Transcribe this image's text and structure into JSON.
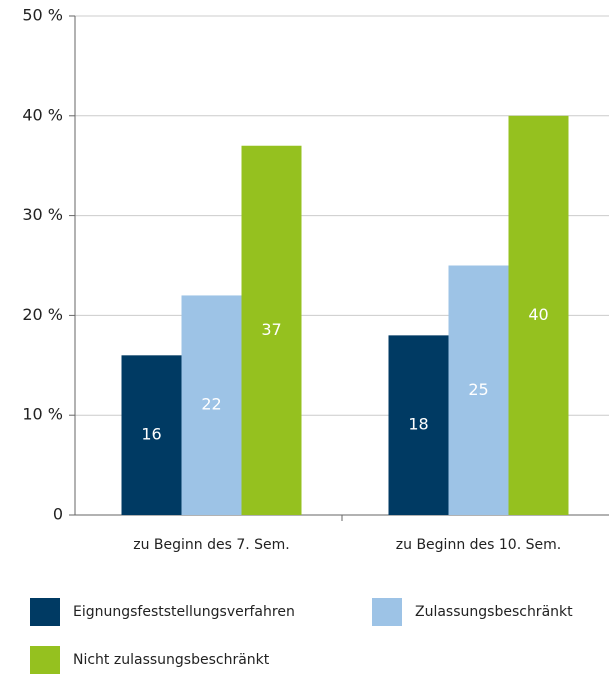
{
  "chart_data": {
    "type": "bar",
    "categories": [
      "zu Beginn des 7. Sem.",
      "zu Beginn des 10. Sem."
    ],
    "series": [
      {
        "name": "Eignungsfeststellungsverfahren",
        "color": "#003a63",
        "values": [
          16,
          18
        ]
      },
      {
        "name": "Zulassungsbeschränkt",
        "color": "#9dc3e6",
        "values": [
          22,
          25
        ]
      },
      {
        "name": "Nicht zulassungsbeschränkt",
        "color": "#95c11f",
        "values": [
          37,
          40
        ]
      }
    ],
    "ylim": [
      0,
      50
    ],
    "yticks": [
      0,
      {
        "value": 10,
        "label": "10 %"
      },
      {
        "value": 20,
        "label": "20 %"
      },
      {
        "value": 30,
        "label": "30 %"
      },
      {
        "value": 40,
        "label": "40 %"
      },
      {
        "value": 50,
        "label": "50 %"
      }
    ],
    "grid": true
  }
}
